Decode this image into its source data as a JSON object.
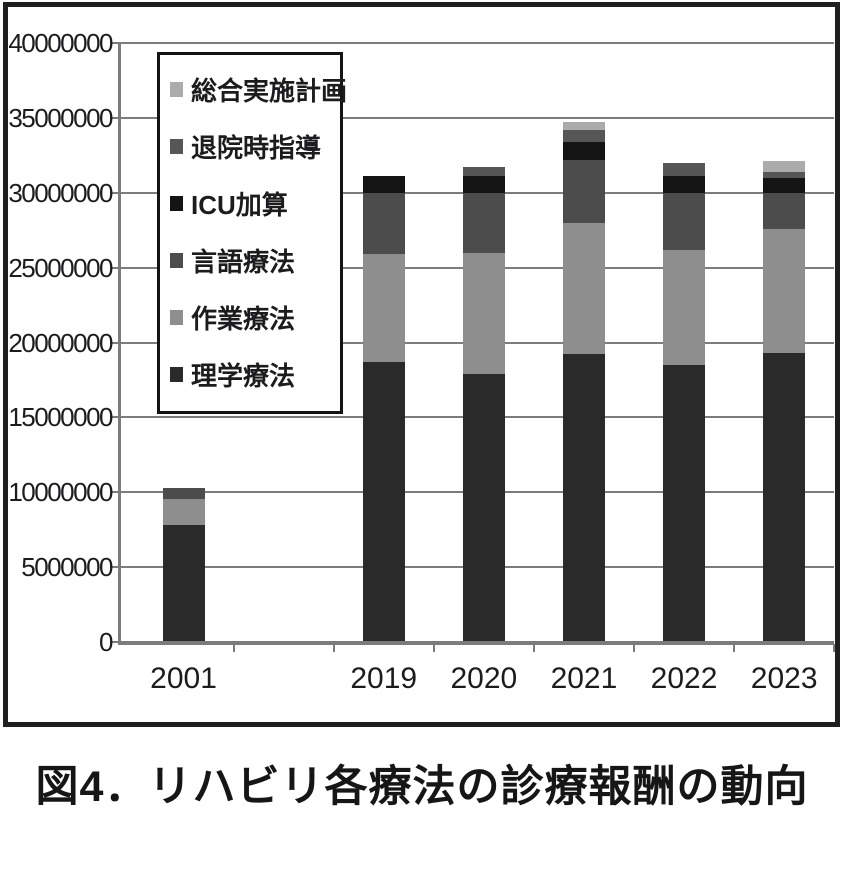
{
  "figure": {
    "caption": "図4．リハビリ各療法の診療報酬の動向"
  },
  "chart_data": {
    "type": "bar",
    "stacked": true,
    "title": "",
    "xlabel": "",
    "ylabel": "",
    "categories": [
      "2001",
      "",
      "2019",
      "2020",
      "2021",
      "2022",
      "2023"
    ],
    "series": [
      {
        "name": "総合実施計画",
        "color": "#ababab",
        "values": [
          0,
          0,
          0,
          0,
          500000,
          0,
          700000
        ]
      },
      {
        "name": "退院時指導",
        "color": "#565656",
        "values": [
          0,
          0,
          0,
          600000,
          800000,
          900000,
          400000
        ]
      },
      {
        "name": "ICU加算",
        "color": "#141414",
        "values": [
          0,
          0,
          1100000,
          1100000,
          1200000,
          1100000,
          1000000
        ]
      },
      {
        "name": "言語療法",
        "color": "#4c4c4c",
        "values": [
          750000,
          0,
          4100000,
          4000000,
          4200000,
          3800000,
          2400000
        ]
      },
      {
        "name": "作業療法",
        "color": "#8e8e8e",
        "values": [
          1750000,
          0,
          7200000,
          8100000,
          8800000,
          7700000,
          8300000
        ]
      },
      {
        "name": "理学療法",
        "color": "#2a2a2a",
        "values": [
          7800000,
          0,
          18700000,
          17900000,
          19200000,
          18500000,
          19300000
        ]
      }
    ],
    "series_order_note": "listed top-of-stack first, matching legend top-to-bottom",
    "y_axis": {
      "min": 0,
      "max": 40000000,
      "tick_step": 5000000,
      "tick_labels": [
        "0",
        "5000000",
        "10000000",
        "15000000",
        "20000000",
        "25000000",
        "30000000",
        "35000000",
        "40000000"
      ]
    },
    "legend_position": "upper-left-inside",
    "grid": "horizontal"
  }
}
